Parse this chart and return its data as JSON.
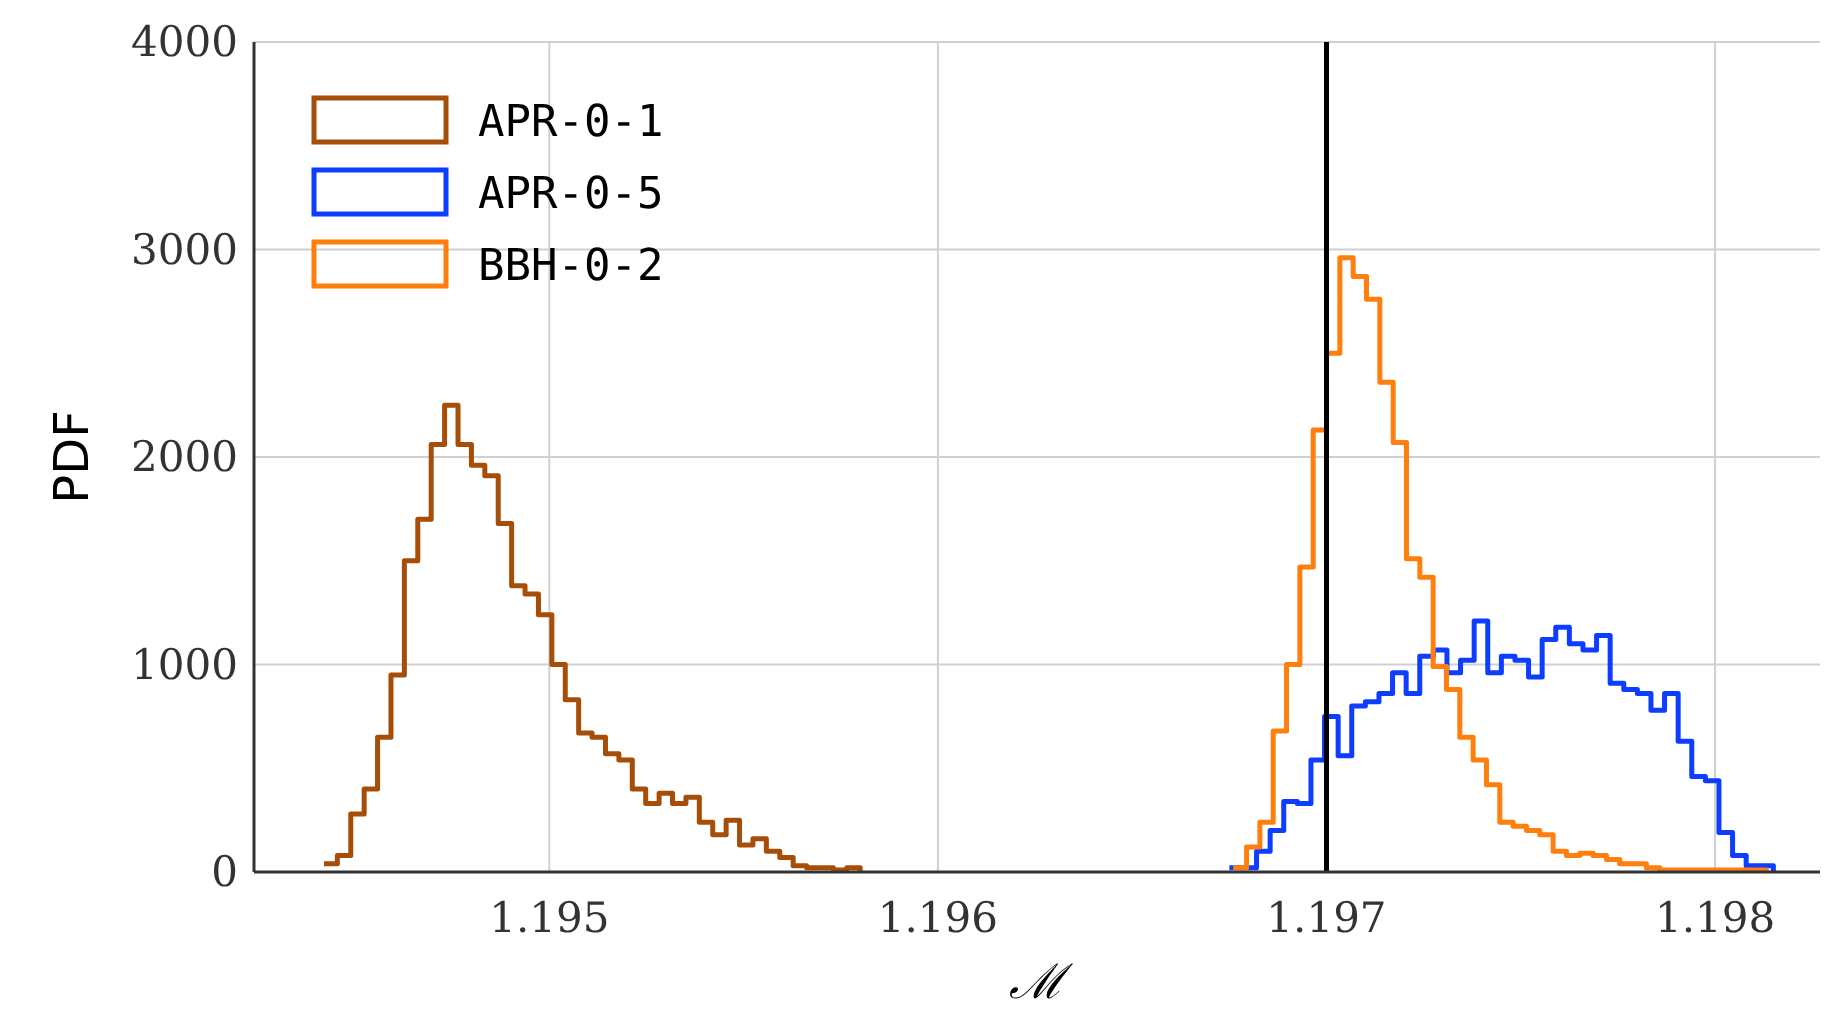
{
  "chart_data": {
    "type": "step",
    "xlabel": "ℳ",
    "ylabel": "PDF",
    "xlim": [
      1.19424,
      1.19827
    ],
    "ylim": [
      0,
      4000
    ],
    "xticks": [
      1.195,
      1.196,
      1.197,
      1.198
    ],
    "yticks": [
      0,
      1000,
      2000,
      3000,
      4000
    ],
    "grid": true,
    "legend": "top left",
    "ref_lines": [
      {
        "axis": "x",
        "value": 1.197,
        "color": "#000000"
      }
    ],
    "series": [
      {
        "name": "APR-0-1",
        "color": "#a64d08",
        "x": [
          1.19442,
          1.1944545,
          1.194489,
          1.1945235,
          1.194558,
          1.1945925,
          1.194627,
          1.1946615,
          1.194696,
          1.1947305,
          1.194765,
          1.1947995,
          1.194834,
          1.1948685,
          1.194903,
          1.1949375,
          1.194972,
          1.1950065,
          1.195041,
          1.1950755,
          1.19511,
          1.1951445,
          1.195179,
          1.1952135,
          1.195248,
          1.1952825,
          1.195317,
          1.1953515,
          1.195386,
          1.1954205,
          1.195455,
          1.1954895,
          1.195524,
          1.1955585,
          1.195593,
          1.1956275,
          1.195662,
          1.1956965,
          1.195731,
          1.1957655,
          1.1958
        ],
        "values": [
          40,
          80,
          280,
          400,
          650,
          950,
          1500,
          1700,
          2060,
          2250,
          2060,
          1960,
          1910,
          1680,
          1380,
          1340,
          1240,
          1000,
          830,
          670,
          650,
          570,
          540,
          400,
          330,
          380,
          330,
          360,
          240,
          180,
          250,
          130,
          160,
          100,
          70,
          30,
          20,
          20,
          10,
          20,
          0
        ]
      },
      {
        "name": "APR-0-5",
        "color": "#0d3dff",
        "x": [
          1.19675,
          1.196785,
          1.19682,
          1.196855,
          1.19689,
          1.196925,
          1.19696,
          1.196995,
          1.19703,
          1.197065,
          1.1971,
          1.197135,
          1.19717,
          1.197205,
          1.19724,
          1.197275,
          1.19731,
          1.197345,
          1.19738,
          1.197415,
          1.19745,
          1.197485,
          1.19752,
          1.197555,
          1.19759,
          1.197625,
          1.19766,
          1.197695,
          1.19773,
          1.197765,
          1.1978,
          1.197835,
          1.19787,
          1.197905,
          1.19794,
          1.197975,
          1.19801,
          1.198045,
          1.19808,
          1.198115,
          1.19815
        ],
        "values": [
          20,
          20,
          100,
          200,
          340,
          330,
          540,
          750,
          560,
          800,
          820,
          860,
          960,
          860,
          1040,
          1070,
          960,
          1020,
          1210,
          960,
          1040,
          1020,
          940,
          1120,
          1180,
          1100,
          1070,
          1140,
          910,
          880,
          860,
          780,
          860,
          630,
          460,
          440,
          190,
          80,
          30,
          30,
          0
        ]
      },
      {
        "name": "BBH-0-2",
        "color": "#ff7f0e",
        "x": [
          1.19676,
          1.1967943,
          1.1968286,
          1.1968629,
          1.1968972,
          1.1969315,
          1.1969658,
          1.1970001,
          1.1970344,
          1.1970687,
          1.197103,
          1.1971373,
          1.1971716,
          1.1972059,
          1.1972402,
          1.1972745,
          1.1973088,
          1.1973431,
          1.1973774,
          1.1974117,
          1.197446,
          1.1974803,
          1.1975146,
          1.1975489,
          1.1975832,
          1.1976175,
          1.1976518,
          1.1976861,
          1.1977204,
          1.1977547,
          1.197789,
          1.1978233,
          1.1978576,
          1.1978919,
          1.1979262,
          1.1979605,
          1.1979948,
          1.1980291,
          1.1980634,
          1.1980977,
          1.198132
        ],
        "values": [
          20,
          120,
          240,
          680,
          1000,
          1470,
          2130,
          2500,
          2960,
          2870,
          2760,
          2360,
          2070,
          1510,
          1420,
          990,
          880,
          650,
          540,
          420,
          240,
          220,
          200,
          180,
          100,
          80,
          90,
          80,
          60,
          40,
          40,
          20,
          10,
          10,
          10,
          10,
          10,
          10,
          10,
          10,
          0
        ]
      }
    ]
  }
}
